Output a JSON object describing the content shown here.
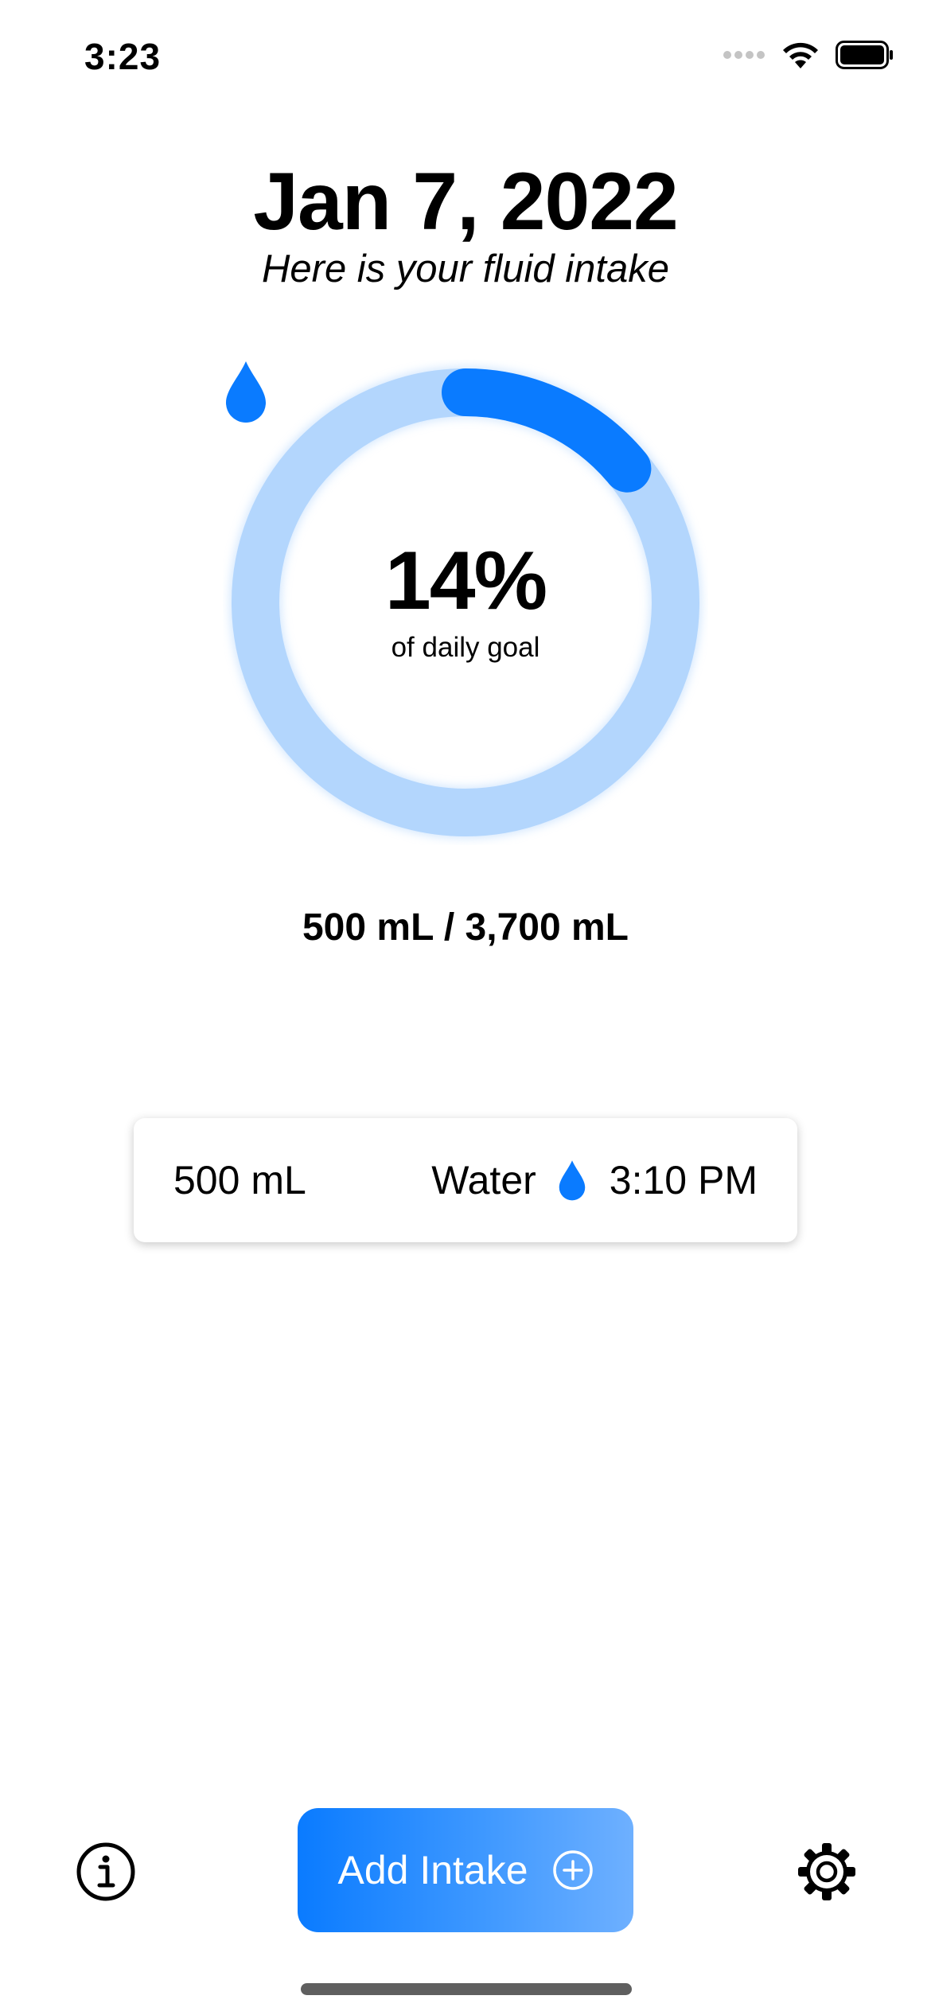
{
  "status_bar": {
    "time": "3:23",
    "icons": [
      "cellular-dots-icon",
      "wifi-icon",
      "battery-icon"
    ]
  },
  "header": {
    "date": "Jan 7, 2022",
    "subtitle": "Here is your fluid intake"
  },
  "progress": {
    "percent_label": "14%",
    "percent_value": 0.14,
    "caption": "of daily goal",
    "icon": "water-drop-icon"
  },
  "summary": {
    "text": "500 mL / 3,700 mL"
  },
  "entries": [
    {
      "amount": "500 mL",
      "type": "Water",
      "icon": "water-drop-icon",
      "time": "3:10 PM"
    }
  ],
  "toolbar": {
    "info_icon": "info-icon",
    "add_label": "Add Intake",
    "add_icon": "plus-circle-icon",
    "settings_icon": "gear-icon"
  },
  "colors": {
    "accent": "#0A7BFF",
    "ring_track": "#B3D6FD",
    "button_gradient_end": "#6EB0FF"
  }
}
